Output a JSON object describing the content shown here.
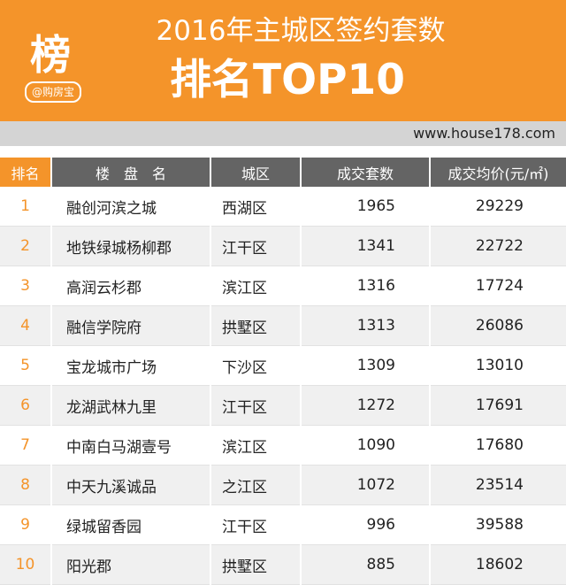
{
  "header": {
    "logo_char": "榜",
    "logo_tag": "@购房宝",
    "title_line1": "2016年主城区签约套数",
    "title_line2": "排名TOP10"
  },
  "site_url": "www.house178.com",
  "table": {
    "columns": [
      "排名",
      "楼　盘　名",
      "城区",
      "成交套数",
      "成交均价(元/㎡)"
    ],
    "rows": [
      {
        "rank": "1",
        "name": "融创河滨之城",
        "district": "西湖区",
        "units": "1965",
        "price": "29229"
      },
      {
        "rank": "2",
        "name": "地铁绿城杨柳郡",
        "district": "江干区",
        "units": "1341",
        "price": "22722"
      },
      {
        "rank": "3",
        "name": "高润云杉郡",
        "district": "滨江区",
        "units": "1316",
        "price": "17724"
      },
      {
        "rank": "4",
        "name": "融信学院府",
        "district": "拱墅区",
        "units": "1313",
        "price": "26086"
      },
      {
        "rank": "5",
        "name": "宝龙城市广场",
        "district": "下沙区",
        "units": "1309",
        "price": "13010"
      },
      {
        "rank": "6",
        "name": "龙湖武林九里",
        "district": "江干区",
        "units": "1272",
        "price": "17691"
      },
      {
        "rank": "7",
        "name": "中南白马湖壹号",
        "district": "滨江区",
        "units": "1090",
        "price": "17680"
      },
      {
        "rank": "8",
        "name": "中天九溪诚品",
        "district": "之江区",
        "units": "1072",
        "price": "23514"
      },
      {
        "rank": "9",
        "name": "绿城留香园",
        "district": "江干区",
        "units": "996",
        "price": "39588"
      },
      {
        "rank": "10",
        "name": "阳光郡",
        "district": "拱墅区",
        "units": "885",
        "price": "18602"
      }
    ]
  },
  "colors": {
    "accent": "#f4942a",
    "header_dark": "#646464",
    "strip": "#d4d4d4"
  }
}
